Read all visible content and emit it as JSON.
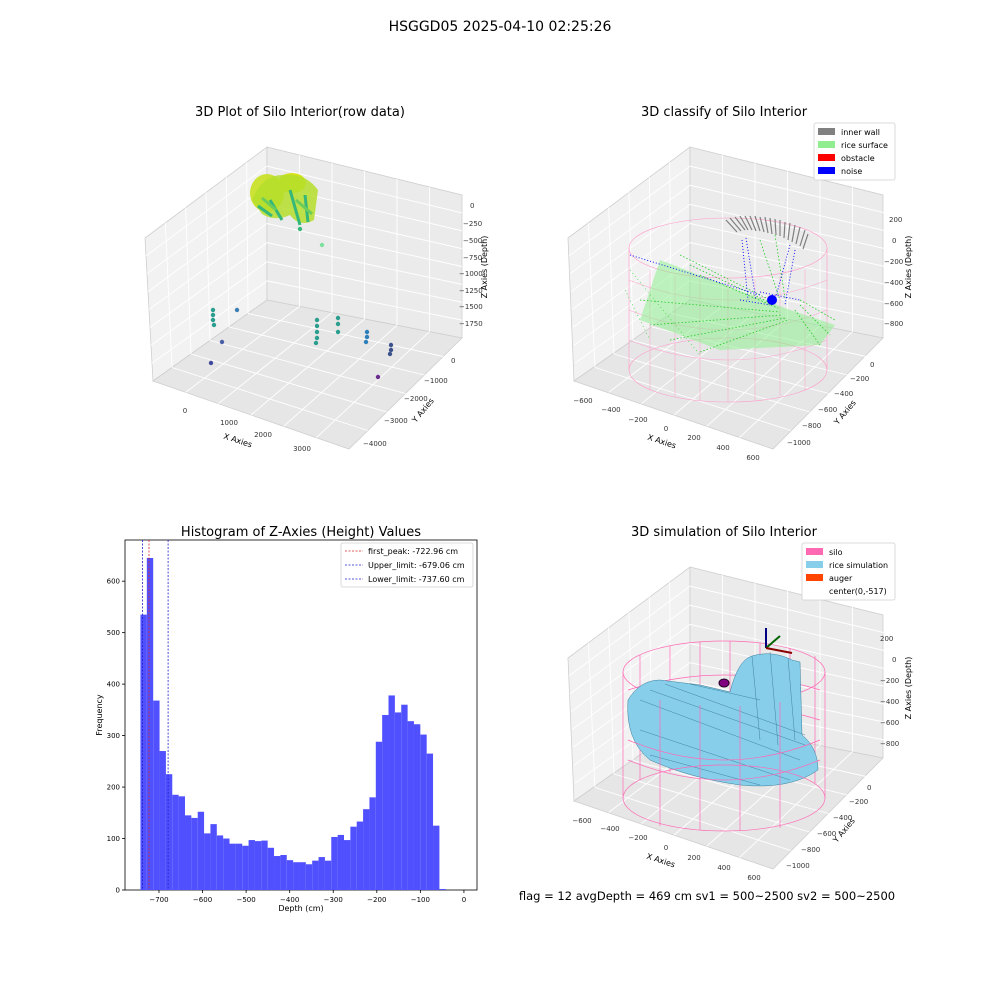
{
  "figure": {
    "suptitle": "HSGGD05 2025-04-10 02:25:26",
    "footer": "flag = 12   avgDepth = 469 cm  sv1 = 500~2500  sv2 = 500~2500"
  },
  "colors": {
    "hist_bar": "#5050ff",
    "first_peak": "#d62728",
    "limit": "#1f1fcf",
    "inner_wall": "#808080",
    "rice_surface": "#90ee90",
    "obstacle": "#ff0000",
    "noise": "#0000ff",
    "silo": "#ff69b4",
    "rice_simulation": "#87ceeb",
    "auger": "#ff4500"
  },
  "chart_data": [
    {
      "type": "scatter",
      "title": "3D Plot of Silo Interior(row data)",
      "xlabel": "X Axies",
      "ylabel": "Y Axies",
      "zlabel": "Z Axies (Depth)",
      "x_ticks": [
        "0",
        "1000",
        "2000",
        "3000"
      ],
      "y_ticks": [
        "0",
        "−1000",
        "−2000",
        "−3000",
        "−4000"
      ],
      "z_ticks": [
        "0",
        "−250",
        "−500",
        "−750",
        "−1000",
        "−1250",
        "−1500",
        "−1750"
      ]
    },
    {
      "type": "scatter",
      "title": "3D classify of Silo Interior",
      "xlabel": "X Axies",
      "ylabel": "Y Axies",
      "zlabel": "Z Axies (Depth)",
      "x_ticks": [
        "−600",
        "−400",
        "−200",
        "0",
        "200",
        "400",
        "600"
      ],
      "y_ticks": [
        "0",
        "−200",
        "−400",
        "−600",
        "−800",
        "−1000"
      ],
      "z_ticks": [
        "200",
        "0",
        "−200",
        "−400",
        "−600",
        "−800"
      ],
      "legend": [
        "inner wall",
        "rice surface",
        "obstacle",
        "noise"
      ],
      "legend_position": "top-right"
    },
    {
      "type": "bar",
      "title": "Histogram of Z-Axies (Height) Values",
      "xlabel": "Depth (cm)",
      "ylabel": "Frequency",
      "xlim": [
        -778,
        30
      ],
      "ylim": [
        0,
        680
      ],
      "x_ticks": [
        -700,
        -600,
        -500,
        -400,
        -300,
        -200,
        -100,
        0
      ],
      "x_tick_labels": [
        "−700",
        "−600",
        "−500",
        "−400",
        "−300",
        "−200",
        "−100",
        "0"
      ],
      "y_ticks": [
        0,
        100,
        200,
        300,
        400,
        500,
        600
      ],
      "bin_start": -742.5,
      "bin_width": 14.6,
      "values": [
        535,
        645,
        368,
        270,
        225,
        185,
        182,
        145,
        140,
        152,
        110,
        128,
        106,
        100,
        90,
        90,
        86,
        97,
        95,
        96,
        82,
        66,
        68,
        58,
        54,
        54,
        50,
        57,
        64,
        57,
        103,
        107,
        97,
        123,
        133,
        157,
        180,
        288,
        340,
        378,
        345,
        360,
        328,
        322,
        302,
        265,
        125,
        2
      ],
      "vlines": [
        {
          "label": "first_peak: -722.96 cm",
          "x": -722.96,
          "color": "red"
        },
        {
          "label": "Upper_limit: -679.06 cm",
          "x": -679.06,
          "color": "blue"
        },
        {
          "label": "Lower_limit: -737.60 cm",
          "x": -737.6,
          "color": "blue"
        }
      ],
      "legend_position": "top-right"
    },
    {
      "type": "area",
      "title": "3D simulation of Silo Interior",
      "xlabel": "X Axies",
      "ylabel": "Y Axies",
      "zlabel": "Z Axies (Depth)",
      "x_ticks": [
        "−600",
        "−400",
        "−200",
        "0",
        "200",
        "400",
        "600"
      ],
      "y_ticks": [
        "0",
        "−200",
        "−400",
        "−600",
        "−800",
        "−1000"
      ],
      "z_ticks": [
        "200",
        "0",
        "−200",
        "−400",
        "−600",
        "−800"
      ],
      "legend": [
        "silo",
        "rice simulation",
        "auger",
        "center(0,-517)"
      ],
      "legend_position": "top-right"
    }
  ]
}
